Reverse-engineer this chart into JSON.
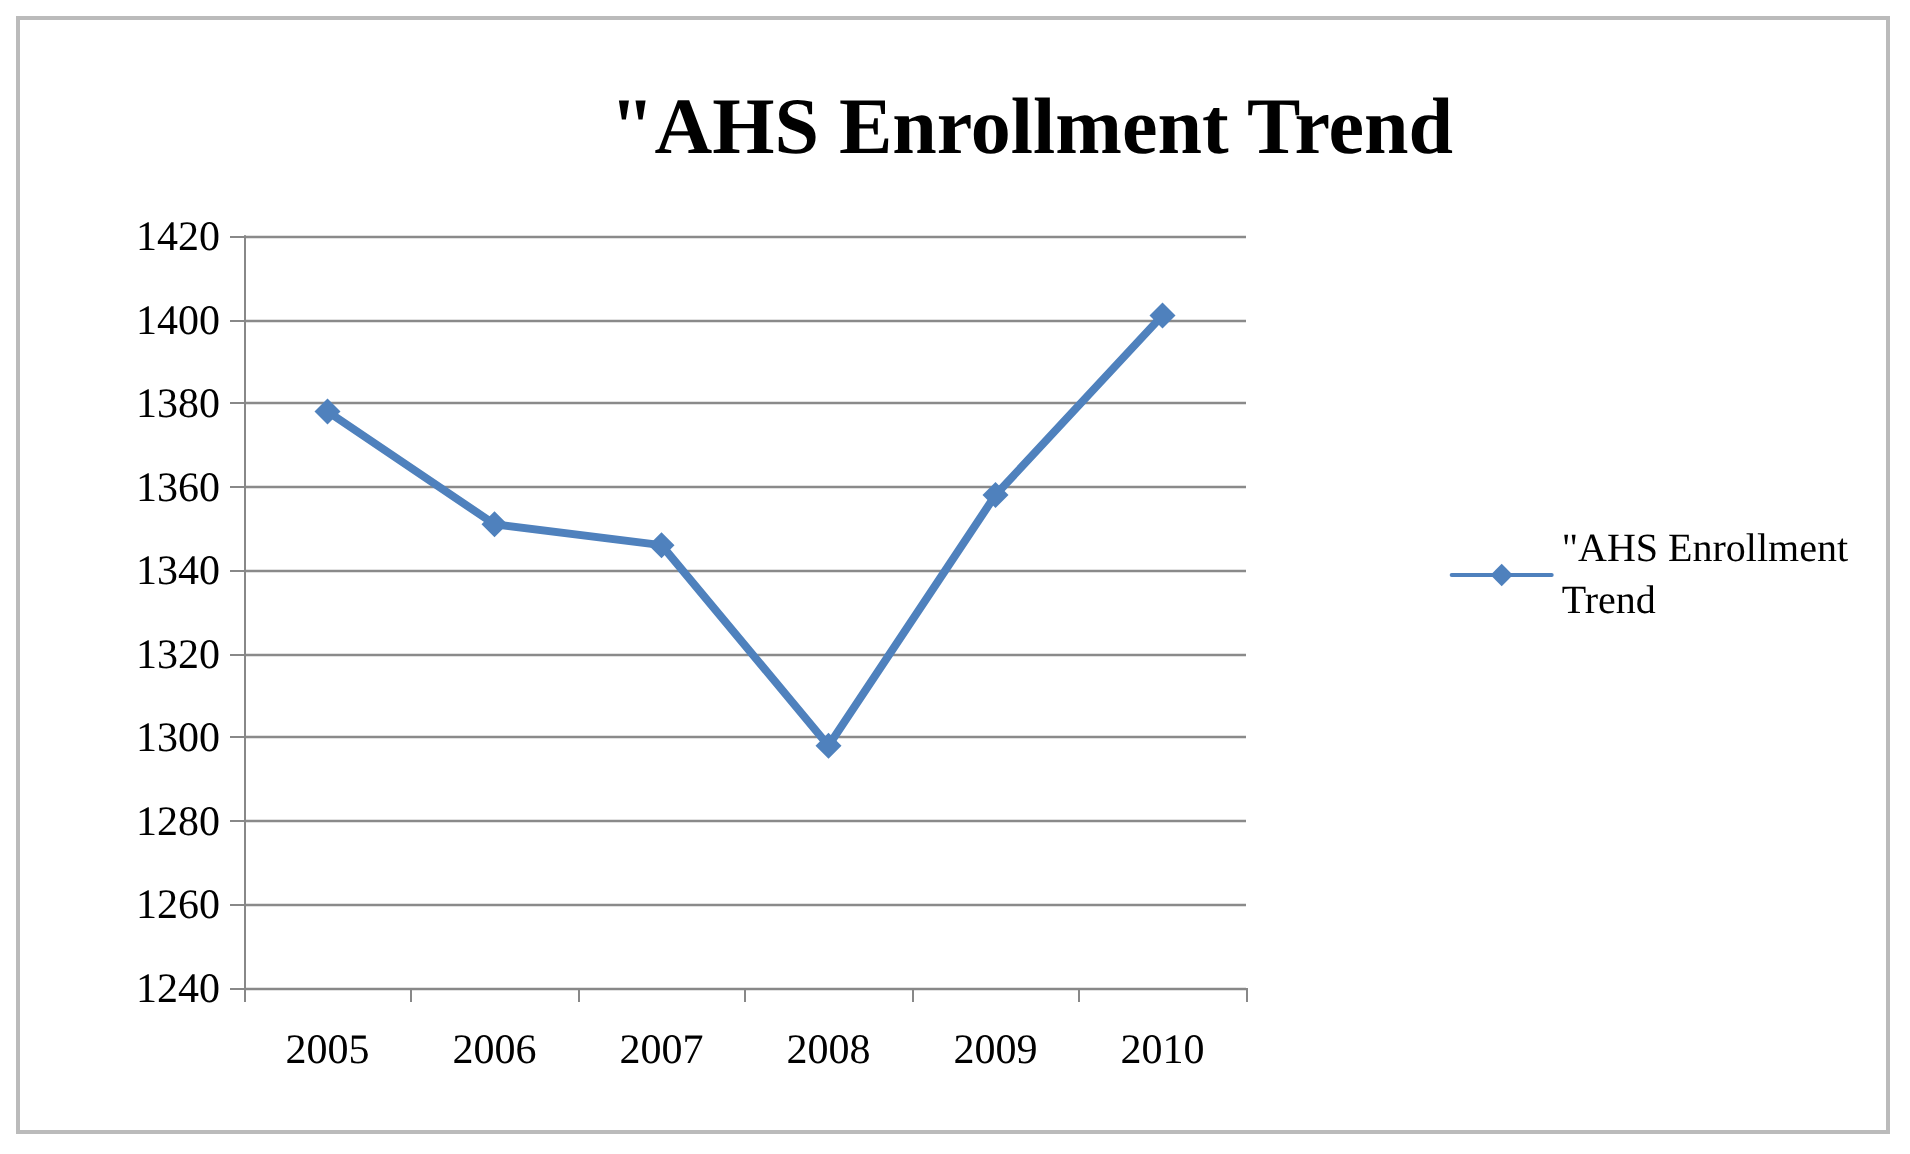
{
  "chart_data": {
    "type": "line",
    "title": "\"AHS Enrollment Trend",
    "categories": [
      "2005",
      "2006",
      "2007",
      "2008",
      "2009",
      "2010"
    ],
    "series": [
      {
        "name": "\"AHS Enrollment Trend",
        "color": "#4f81bd",
        "values": [
          1378,
          1351,
          1346,
          1298,
          1358,
          1401
        ]
      }
    ],
    "ylim": [
      1240,
      1420
    ],
    "yticks": [
      1240,
      1260,
      1280,
      1300,
      1320,
      1340,
      1360,
      1380,
      1400,
      1420
    ],
    "grid": "y",
    "legend": "right",
    "marker": "diamond"
  }
}
